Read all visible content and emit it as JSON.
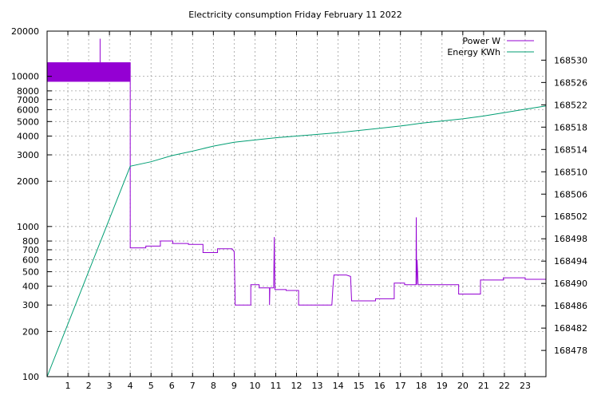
{
  "chart_data": {
    "type": "line",
    "title": "Electricity consumption Friday February 11 2022",
    "xlabel": "",
    "ylabel": "",
    "y2label": "",
    "xlim": [
      0,
      24
    ],
    "ylim": [
      100,
      20000
    ],
    "y2lim": [
      168473.3,
      168535.2
    ],
    "yscale": "log",
    "grid": true,
    "legend_position": "top-right",
    "x_ticks": [
      1,
      2,
      3,
      4,
      5,
      6,
      7,
      8,
      9,
      10,
      11,
      12,
      13,
      14,
      15,
      16,
      17,
      18,
      19,
      20,
      21,
      22,
      23
    ],
    "y_ticks": [
      {
        "value": 100,
        "label": "100"
      },
      {
        "value": 200,
        "label": "200"
      },
      {
        "value": 300,
        "label": "300"
      },
      {
        "value": 400,
        "label": "400"
      },
      {
        "value": 500,
        "label": "500"
      },
      {
        "value": 600,
        "label": "600"
      },
      {
        "value": 700,
        "label": "700"
      },
      {
        "value": 800,
        "label": "800"
      },
      {
        "value": 1000,
        "label": "1000"
      },
      {
        "value": 2000,
        "label": "2000"
      },
      {
        "value": 3000,
        "label": "3000"
      },
      {
        "value": 4000,
        "label": "4000"
      },
      {
        "value": 5000,
        "label": "5000"
      },
      {
        "value": 6000,
        "label": "6000"
      },
      {
        "value": 7000,
        "label": "7000"
      },
      {
        "value": 8000,
        "label": "8000"
      },
      {
        "value": 10000,
        "label": "10000"
      },
      {
        "value": 20000,
        "label": "20000"
      }
    ],
    "y2_ticks": [
      168478,
      168482,
      168486,
      168490,
      168494,
      168498,
      168502,
      168506,
      168510,
      168514,
      168518,
      168522,
      168526,
      168530
    ],
    "series": [
      {
        "name": "Power W",
        "axis": "y",
        "color": "#9400d3",
        "band": {
          "x_start": 0,
          "x_end": 4.0,
          "y_min": 9200,
          "y_max": 12400
        },
        "spikes": [
          {
            "x": 2.55,
            "y": 17800
          }
        ],
        "points": [
          [
            4.0,
            12400
          ],
          [
            4.0,
            720
          ],
          [
            4.75,
            720
          ],
          [
            4.75,
            740
          ],
          [
            5.45,
            740
          ],
          [
            5.45,
            800
          ],
          [
            6.05,
            800
          ],
          [
            6.05,
            770
          ],
          [
            6.8,
            770
          ],
          [
            6.8,
            760
          ],
          [
            7.5,
            760
          ],
          [
            7.5,
            670
          ],
          [
            8.2,
            670
          ],
          [
            8.2,
            710
          ],
          [
            8.9,
            710
          ],
          [
            9.0,
            680
          ],
          [
            9.02,
            520
          ],
          [
            9.05,
            300
          ],
          [
            9.8,
            300
          ],
          [
            9.8,
            410
          ],
          [
            10.2,
            410
          ],
          [
            10.2,
            390
          ],
          [
            10.7,
            390
          ],
          [
            10.7,
            300
          ],
          [
            10.72,
            390
          ],
          [
            10.9,
            390
          ],
          [
            10.93,
            850
          ],
          [
            10.96,
            380
          ],
          [
            11.5,
            380
          ],
          [
            11.5,
            375
          ],
          [
            12.1,
            375
          ],
          [
            12.1,
            300
          ],
          [
            13.7,
            300
          ],
          [
            13.75,
            390
          ],
          [
            13.8,
            475
          ],
          [
            14.4,
            475
          ],
          [
            14.6,
            465
          ],
          [
            14.65,
            320
          ],
          [
            15.8,
            320
          ],
          [
            15.8,
            330
          ],
          [
            16.7,
            330
          ],
          [
            16.7,
            420
          ],
          [
            17.2,
            420
          ],
          [
            17.2,
            410
          ],
          [
            17.75,
            410
          ],
          [
            17.76,
            1150
          ],
          [
            17.78,
            410
          ],
          [
            17.8,
            600
          ],
          [
            17.85,
            410
          ],
          [
            19.8,
            410
          ],
          [
            19.8,
            355
          ],
          [
            20.85,
            355
          ],
          [
            20.85,
            440
          ],
          [
            21.95,
            440
          ],
          [
            21.95,
            455
          ],
          [
            23.0,
            455
          ],
          [
            23.0,
            445
          ],
          [
            24.0,
            445
          ]
        ]
      },
      {
        "name": "Energy KWh",
        "axis": "y2",
        "color": "#009e73",
        "points": [
          [
            0,
            168473.3
          ],
          [
            4.0,
            168511.0
          ],
          [
            5.0,
            168511.8
          ],
          [
            6.0,
            168512.9
          ],
          [
            7.0,
            168513.7
          ],
          [
            8.0,
            168514.6
          ],
          [
            9.0,
            168515.3
          ],
          [
            10.0,
            168515.7
          ],
          [
            11.0,
            168516.1
          ],
          [
            12.0,
            168516.4
          ],
          [
            13.0,
            168516.7
          ],
          [
            14.0,
            168517.0
          ],
          [
            15.0,
            168517.4
          ],
          [
            16.0,
            168517.8
          ],
          [
            17.0,
            168518.2
          ],
          [
            18.0,
            168518.7
          ],
          [
            19.0,
            168519.1
          ],
          [
            20.0,
            168519.5
          ],
          [
            21.0,
            168520.0
          ],
          [
            22.0,
            168520.6
          ],
          [
            23.0,
            168521.2
          ],
          [
            24.0,
            168521.8
          ]
        ]
      }
    ]
  }
}
